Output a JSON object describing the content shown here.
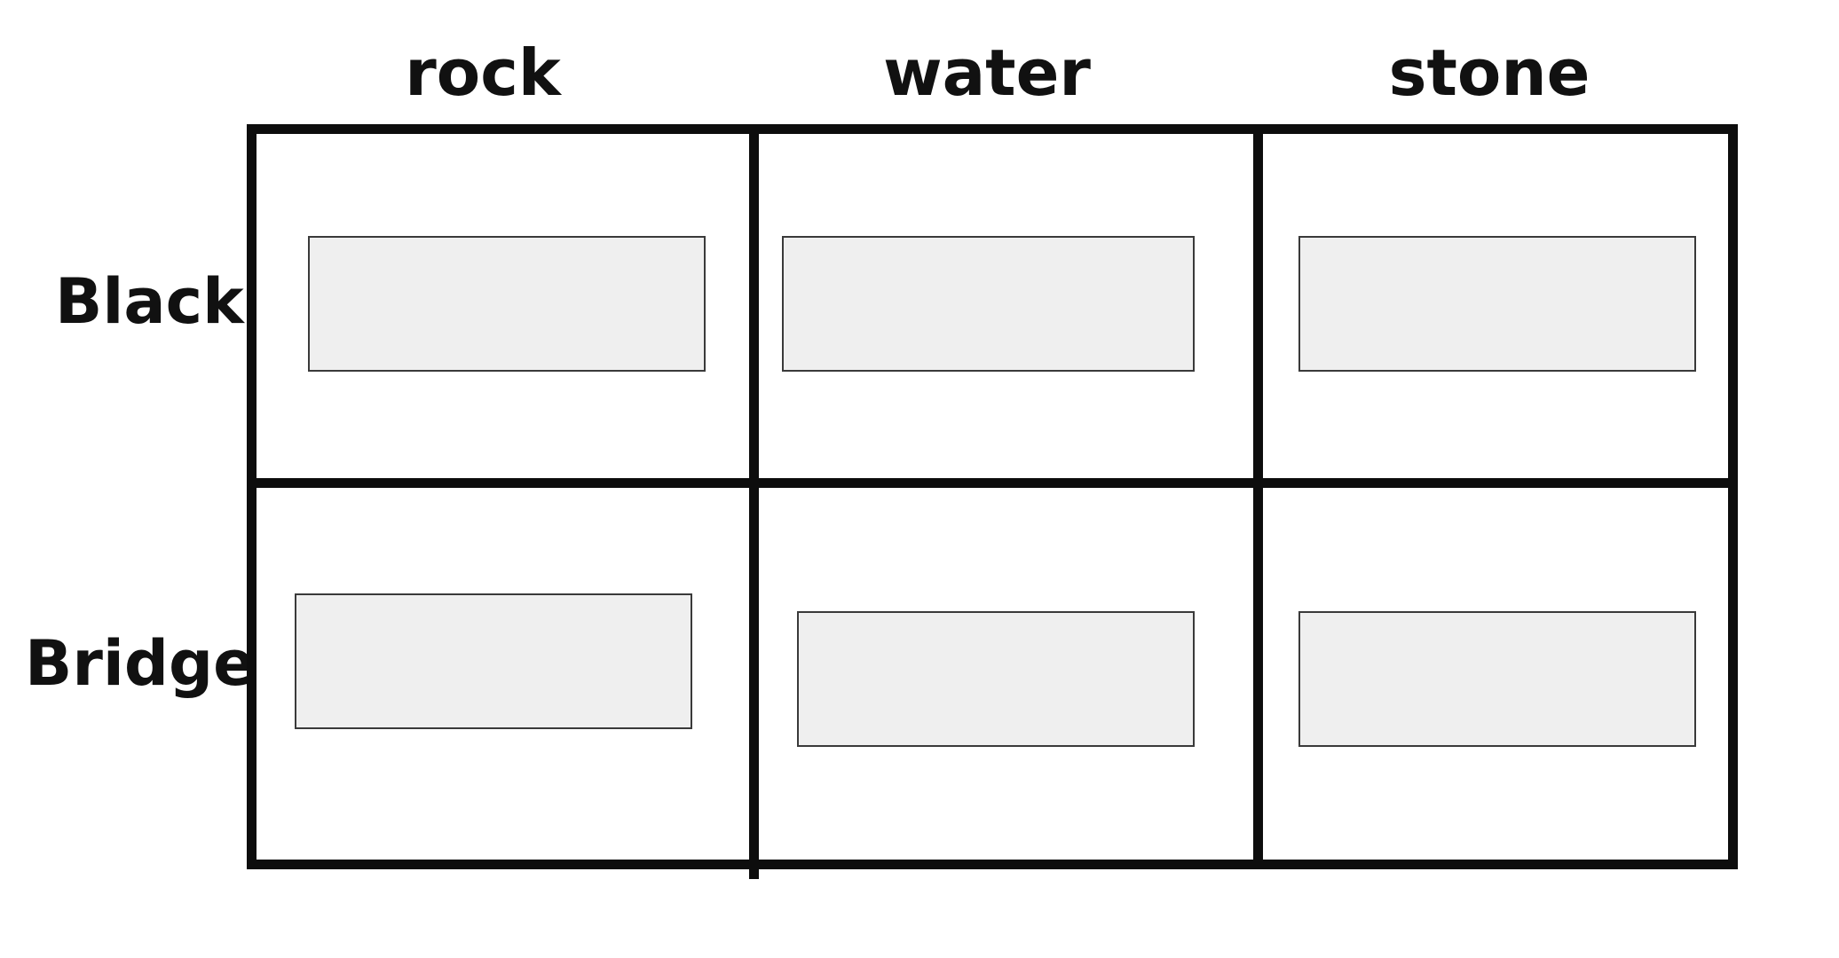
{
  "columns": [
    "rock",
    "water",
    "stone"
  ],
  "rows": [
    "Black",
    "Bridge"
  ],
  "colors": {
    "grid_line": "#0d0d0d",
    "drop_box_fill": "#efefef",
    "drop_box_border": "#3a3a3a",
    "text": "#111111",
    "background": "#ffffff"
  }
}
